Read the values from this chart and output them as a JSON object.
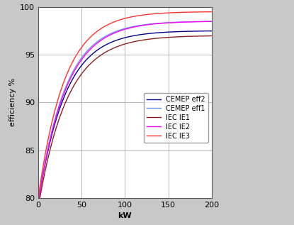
{
  "series": [
    {
      "label": "CEMEP eff2",
      "color": "#00008B",
      "asymptote": 97.5,
      "start": 79.5,
      "rate": 0.032
    },
    {
      "label": "CEMEP eff1",
      "color": "#6495ED",
      "asymptote": 98.5,
      "start": 79.5,
      "rate": 0.032
    },
    {
      "label": "IEC IE1",
      "color": "#8B2020",
      "asymptote": 97.0,
      "start": 79.0,
      "rate": 0.03
    },
    {
      "label": "IEC IE2",
      "color": "#FF00FF",
      "asymptote": 98.5,
      "start": 79.5,
      "rate": 0.031
    },
    {
      "label": "IEC IE3",
      "color": "#FF3030",
      "asymptote": 99.5,
      "start": 80.0,
      "rate": 0.033
    }
  ],
  "xlabel": "kW",
  "ylabel": "efficiency %",
  "xlim": [
    0,
    200
  ],
  "ylim": [
    80,
    100
  ],
  "xticks": [
    0,
    50,
    100,
    150,
    200
  ],
  "yticks": [
    80,
    85,
    90,
    95,
    100
  ],
  "background_color": "#FFFFFF",
  "figure_bg": "#C8C8C8",
  "legend_loc": "center right",
  "figwidth": 4.15,
  "figheight": 3.17,
  "dpi": 100
}
